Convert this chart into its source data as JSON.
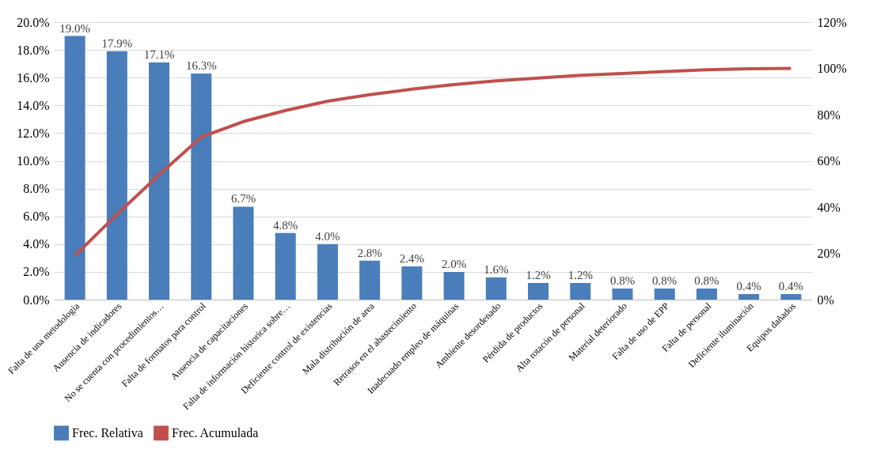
{
  "chart_data": {
    "type": "bar",
    "categories": [
      "Falta de una metodologia",
      "Ausencia de indicadores",
      "No se cuenta con procedimientos…",
      "Falta de formatos para control",
      "Ausencia de capacitaciones",
      "Falta de información historica sobre…",
      "Deficiente control de existencias",
      "Mala distribución de area",
      "Retrasos en el abastecimiento",
      "Inadecuado empleo de máquinas",
      "Ambiente desordenado",
      "Pérdida de productos",
      "Alta rotacón  de personal",
      "Material deteriorado",
      "Falta de uso de EPP",
      "Falta de personal",
      "Deficiente iluminación",
      "Equipos dañados"
    ],
    "series": [
      {
        "name": "Frec. Relativa",
        "color": "#4a7ebb",
        "values": [
          19.0,
          17.9,
          17.1,
          16.3,
          6.7,
          4.8,
          4.0,
          2.8,
          2.4,
          2.0,
          1.6,
          1.2,
          1.2,
          0.8,
          0.8,
          0.8,
          0.4,
          0.4
        ],
        "value_labels": [
          "19.0%",
          "17.9%",
          "17.1%",
          "16.3%",
          "6.7%",
          "4.8%",
          "4.0%",
          "2.8%",
          "2.4%",
          "2.0%",
          "1.6%",
          "1.2%",
          "1.2%",
          "0.8%",
          "0.8%",
          "0.8%",
          "0.4%",
          "0.4%"
        ]
      },
      {
        "name": "Frec. Acumulada",
        "type": "line",
        "axis": "y2",
        "color": "#c0504d",
        "values": [
          19.0,
          36.9,
          54.0,
          70.3,
          77.0,
          81.8,
          85.8,
          88.6,
          91.0,
          93.0,
          94.6,
          95.8,
          97.0,
          97.8,
          98.6,
          99.4,
          99.8,
          100.0
        ]
      }
    ],
    "ylim": [
      0,
      20
    ],
    "yticks": [
      {
        "value": 0,
        "label": "0.0%"
      },
      {
        "value": 2,
        "label": "2.0%"
      },
      {
        "value": 4,
        "label": "4.0%"
      },
      {
        "value": 6,
        "label": "6.0%"
      },
      {
        "value": 8,
        "label": "8.0%"
      },
      {
        "value": 10,
        "label": "10.0%"
      },
      {
        "value": 12,
        "label": "12.0%"
      },
      {
        "value": 14,
        "label": "14.0%"
      },
      {
        "value": 16,
        "label": "16.0%"
      },
      {
        "value": 18,
        "label": "18.0%"
      },
      {
        "value": 20,
        "label": "20.0%"
      }
    ],
    "y2lim": [
      0,
      120
    ],
    "y2ticks": [
      {
        "value": 0,
        "label": "0%"
      },
      {
        "value": 20,
        "label": "20%"
      },
      {
        "value": 40,
        "label": "40%"
      },
      {
        "value": 60,
        "label": "60%"
      },
      {
        "value": 80,
        "label": "80%"
      },
      {
        "value": 100,
        "label": "100%"
      },
      {
        "value": 120,
        "label": "120%"
      }
    ],
    "grid": "y",
    "legend": "bottom"
  }
}
